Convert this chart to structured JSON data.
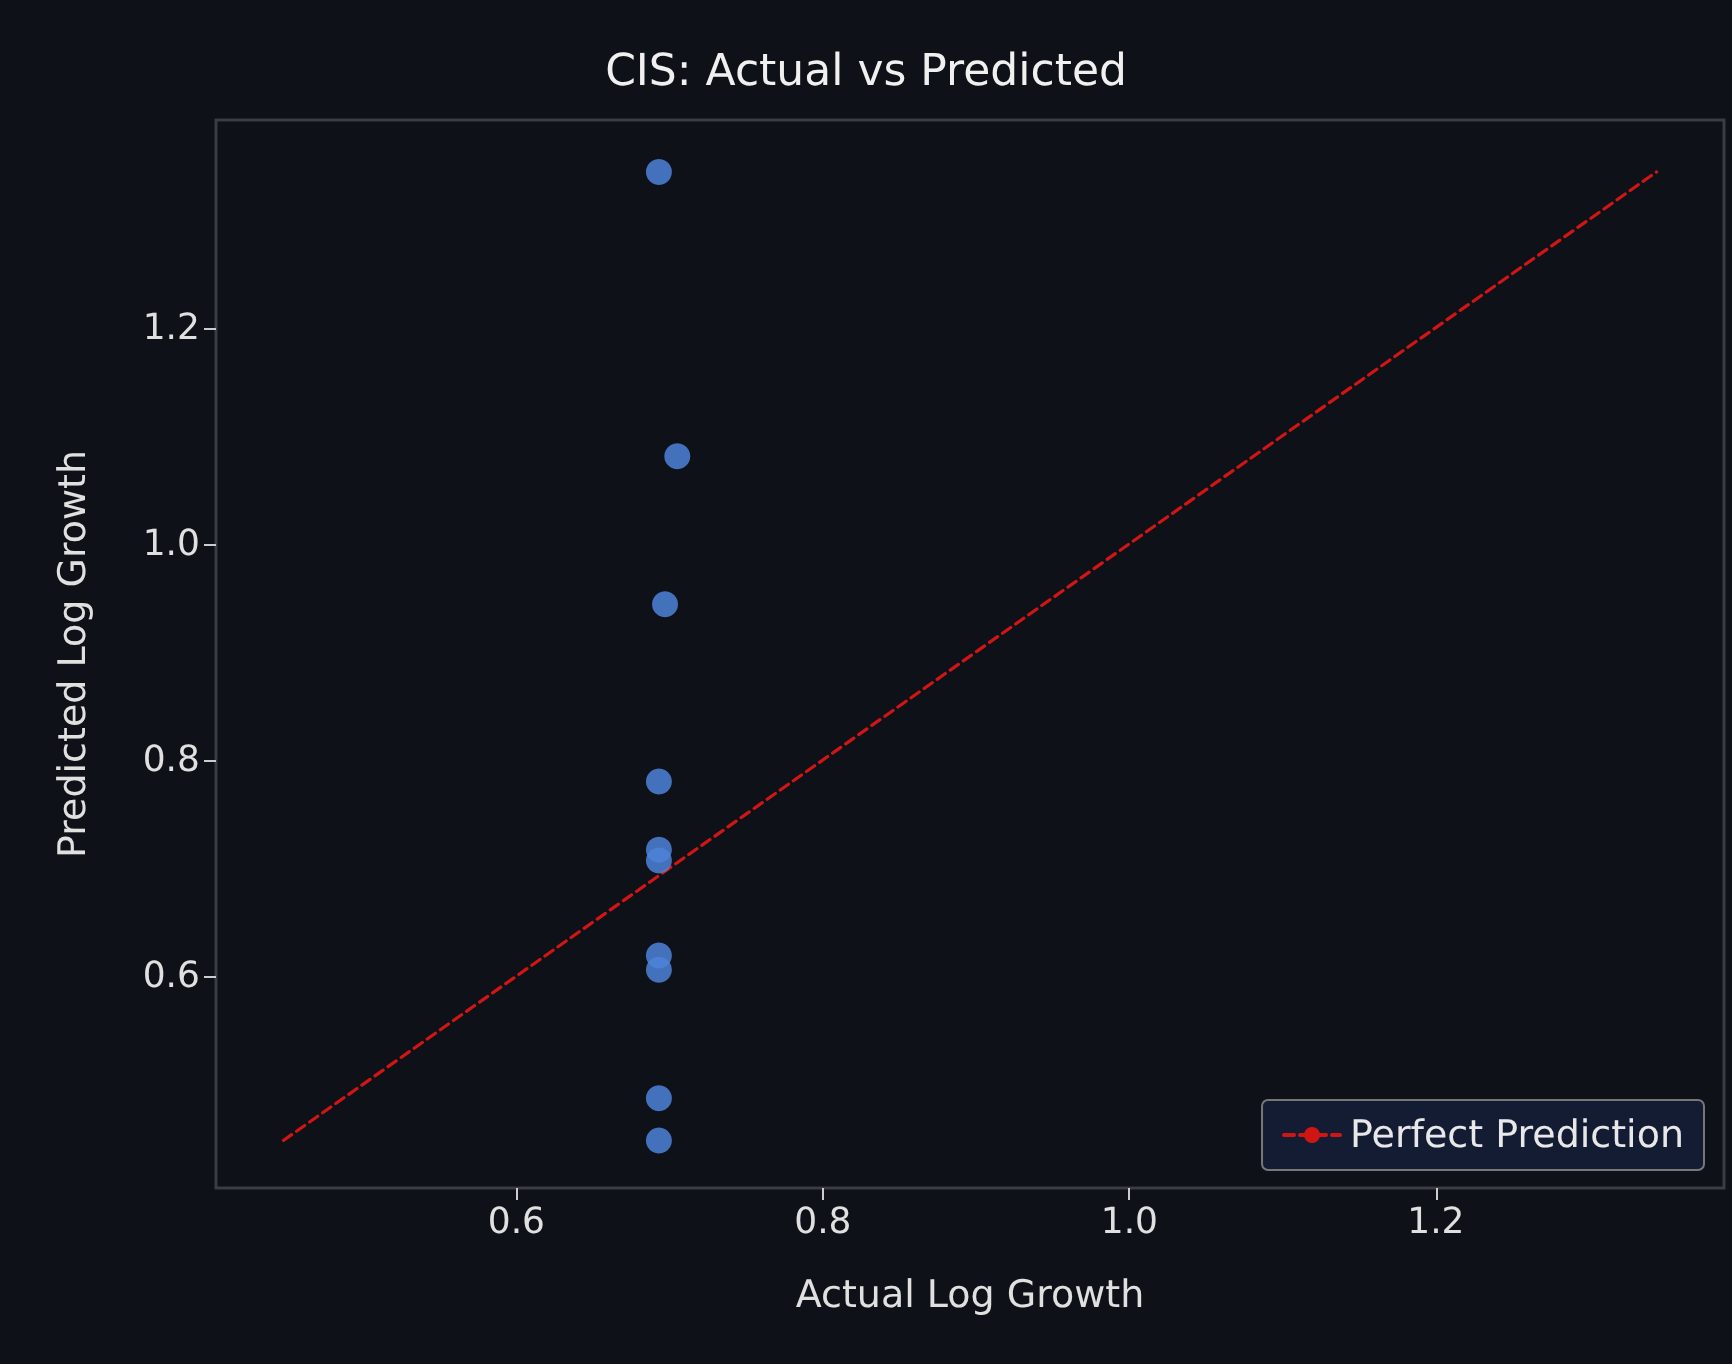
{
  "chart_data": {
    "type": "scatter",
    "title": "CIS: Actual vs Predicted",
    "xlabel": "Actual Log Growth",
    "ylabel": "Predicted Log Growth",
    "xlim": [
      0.404,
      1.388
    ],
    "ylim": [
      0.404,
      1.392
    ],
    "xticks": [
      0.6,
      0.8,
      {
        "value": 1,
        "label": "1.0"
      },
      1.2
    ],
    "yticks": [
      0.6,
      0.8,
      {
        "value": 1,
        "label": "1.0"
      },
      1.2
    ],
    "grid": false,
    "legend": "bottom right",
    "series": [
      {
        "color": "#4e82d8",
        "marker": "circle",
        "x": [
          0.693,
          0.705,
          0.697,
          0.693,
          0.693,
          0.693,
          0.693,
          0.693,
          0.693,
          0.693
        ],
        "values": [
          1.344,
          1.081,
          0.944,
          0.78,
          0.717,
          0.707,
          0.619,
          0.606,
          0.487,
          0.448
        ]
      },
      {
        "type": "line",
        "name": "Perfect Prediction",
        "color": "#d01515",
        "line_style": "dashed",
        "marker": "none",
        "x": [
          0.448,
          1.344
        ],
        "values": [
          0.448,
          1.344
        ]
      }
    ]
  }
}
